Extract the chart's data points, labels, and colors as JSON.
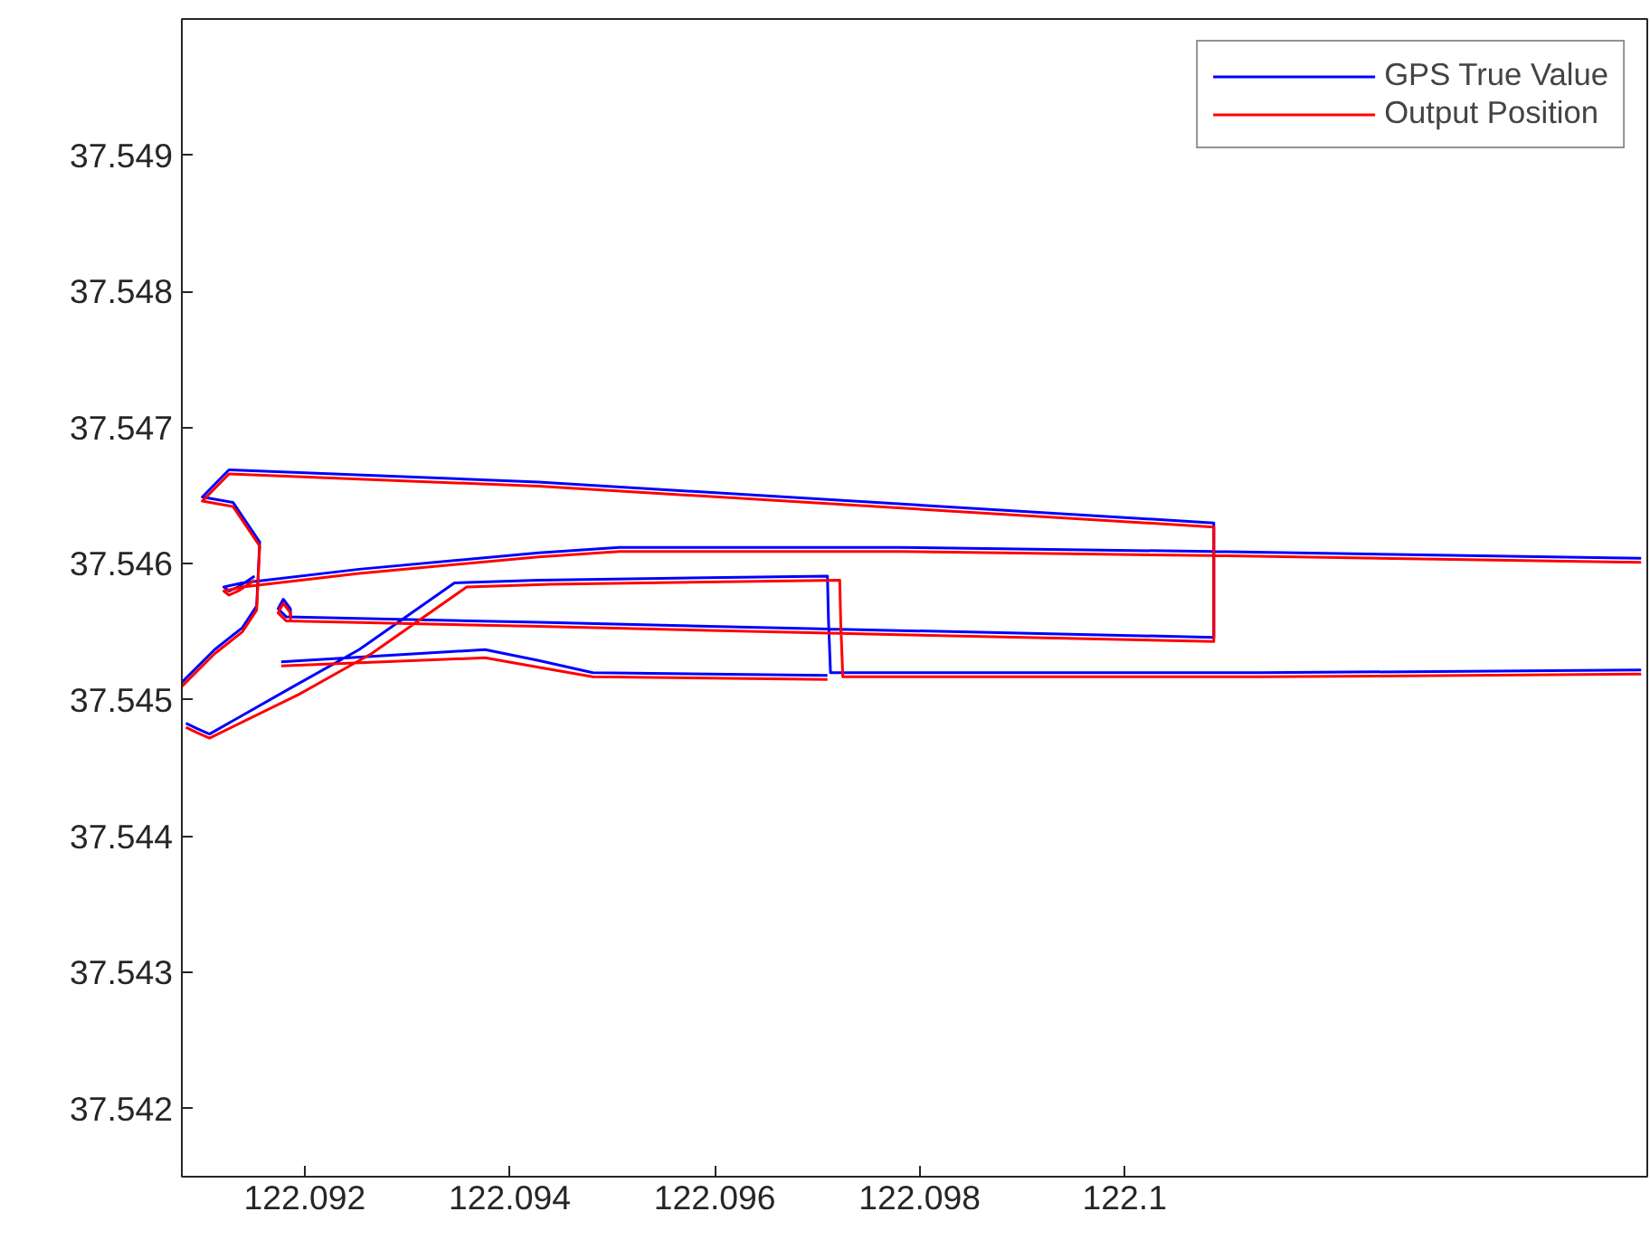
{
  "chart_data": {
    "type": "line",
    "xlim": [
      122.0908,
      122.1051
    ],
    "ylim": [
      37.5415,
      37.55
    ],
    "xticks": [
      122.092,
      122.094,
      122.096,
      122.098,
      122.1
    ],
    "yticks": [
      37.542,
      37.543,
      37.544,
      37.545,
      37.546,
      37.547,
      37.548,
      37.549
    ],
    "grid": false,
    "legend": "top right",
    "line_style": "solid",
    "marker": "none",
    "series": [
      {
        "name": "GPS True Value",
        "color": "#0000ff",
        "x": [
          122.09084,
          122.09095,
          122.09107,
          122.09182,
          122.09253,
          122.09346,
          122.09428,
          122.0971,
          122.09711,
          122.09713,
          122.10131,
          122.10504,
          null,
          122.10504,
          122.10087,
          122.0978,
          122.09507,
          122.09428,
          122.09253,
          122.09139,
          122.09121,
          122.09126,
          122.09135,
          122.09151,
          null,
          122.0908,
          122.09112,
          122.09139,
          122.09153,
          122.09156,
          122.0913,
          122.091,
          122.09126,
          122.09428,
          122.10087,
          122.10087,
          122.0978,
          122.09428,
          122.09182,
          122.09174,
          122.09179,
          122.09186,
          122.09186,
          null,
          122.09177,
          122.09376,
          122.09428,
          122.09481,
          122.0971
        ],
        "values": [
          37.54483,
          37.54479,
          37.54475,
          37.54507,
          37.54537,
          37.54586,
          37.54588,
          37.54591,
          37.54559,
          37.5452,
          37.5452,
          37.54522,
          null,
          37.54604,
          37.54609,
          37.54612,
          37.54612,
          37.54608,
          37.54596,
          37.54586,
          37.54583,
          37.5458,
          37.54583,
          37.54591,
          null,
          37.54513,
          37.54537,
          37.54553,
          37.54569,
          37.54616,
          37.54645,
          37.54649,
          37.54669,
          37.5466,
          37.5463,
          37.54546,
          37.54551,
          37.54557,
          37.54561,
          37.54567,
          37.54574,
          37.54567,
          37.54561,
          null,
          37.54528,
          37.54537,
          37.54529,
          37.5452,
          37.54518
        ]
      },
      {
        "name": "Output Position",
        "color": "#ff0000",
        "x": [
          122.09084,
          122.09095,
          122.09107,
          122.09194,
          122.09265,
          122.09358,
          122.0944,
          122.09722,
          122.09723,
          122.09725,
          122.10131,
          122.10504,
          null,
          122.10504,
          122.10087,
          122.0978,
          122.09507,
          122.09428,
          122.09253,
          122.09139,
          122.09121,
          122.09126,
          122.09135,
          122.09151,
          null,
          122.0908,
          122.09112,
          122.09139,
          122.09153,
          122.09156,
          122.0913,
          122.091,
          122.09126,
          122.09428,
          122.10087,
          122.10087,
          122.0978,
          122.09428,
          122.09182,
          122.09174,
          122.09179,
          122.09186,
          122.09186,
          null,
          122.09177,
          122.09376,
          122.09428,
          122.09481,
          122.0971
        ],
        "values": [
          37.5448,
          37.54476,
          37.54472,
          37.54504,
          37.54534,
          37.54583,
          37.54585,
          37.54588,
          37.54556,
          37.54517,
          37.54517,
          37.54519,
          null,
          37.54601,
          37.54606,
          37.54609,
          37.54609,
          37.54605,
          37.54593,
          37.54583,
          37.5458,
          37.54577,
          37.5458,
          37.54588,
          null,
          37.5451,
          37.54534,
          37.5455,
          37.54566,
          37.54613,
          37.54642,
          37.54646,
          37.54666,
          37.54657,
          37.54627,
          37.54543,
          37.54548,
          37.54554,
          37.54558,
          37.54564,
          37.54571,
          37.54564,
          37.54558,
          null,
          37.54525,
          37.54531,
          37.54524,
          37.54517,
          37.54515
        ]
      }
    ]
  }
}
